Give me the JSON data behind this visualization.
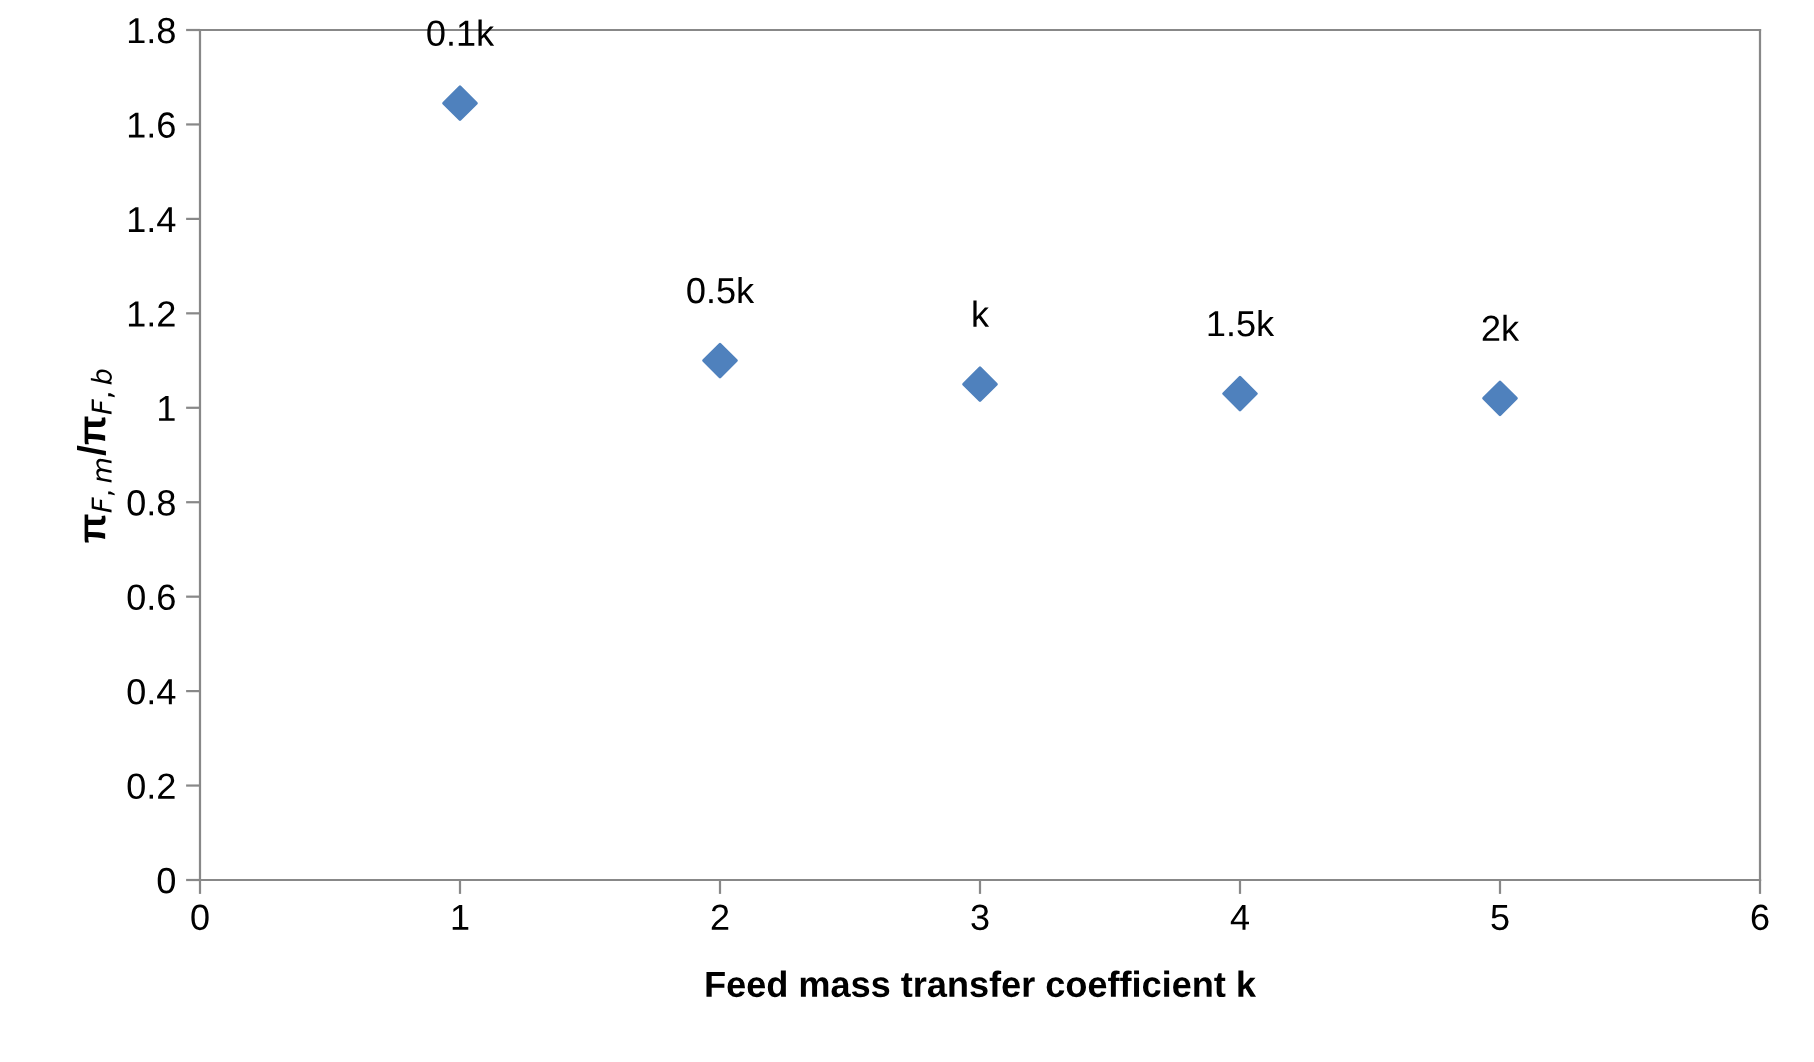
{
  "chart_data": {
    "type": "scatter",
    "xlabel": "Feed mass transfer coefficient k",
    "ylabel": "π$_{F,m}$/π$_{F,b}$",
    "x": [
      1,
      2,
      3,
      4,
      5
    ],
    "values": [
      1.645,
      1.1,
      1.05,
      1.03,
      1.02
    ],
    "color": "#4f81bd",
    "marker": "diamond",
    "grid": false,
    "legend": false,
    "xlim": [
      0,
      6
    ],
    "xticks": [
      0,
      1,
      2,
      3,
      4,
      5,
      6
    ],
    "ylim": [
      0,
      1.8
    ],
    "yticks": [
      0,
      0.2,
      0.4,
      0.6,
      0.8,
      1,
      1.2,
      1.4,
      1.6,
      1.8
    ],
    "annotations": [
      {
        "text": "0.1k",
        "x": 1,
        "y": 1.645
      },
      {
        "text": "0.5k",
        "x": 2,
        "y": 1.1
      },
      {
        "text": "k",
        "x": 3,
        "y": 1.05
      },
      {
        "text": "1.5k",
        "x": 4,
        "y": 1.03
      },
      {
        "text": "2k",
        "x": 5,
        "y": 1.02
      }
    ]
  }
}
